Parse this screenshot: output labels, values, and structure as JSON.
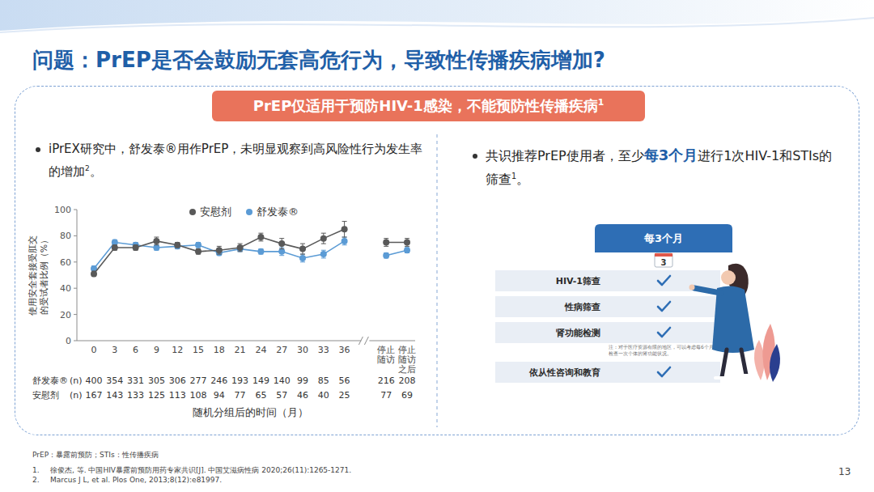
{
  "slide": {
    "title": "问题：PrEP是否会鼓励无套高危行为，导致性传播疾病增加?",
    "banner": {
      "text": "PrEP仅适用于预防HIV-1感染，不能预防性传播疾病",
      "ref": "1"
    },
    "left_bullet": {
      "text": "iPrEX研究中，舒发泰®用作PrEP，未明显观察到高风险性行为发生率的增加",
      "ref": "2",
      "end": "。"
    },
    "right_bullet": {
      "before": "共识推荐PrEP使用者，至少",
      "highlight": "每3个月",
      "after": "进行1次HIV-1和STIs的筛查",
      "ref": "1",
      "end": "。"
    },
    "schedule": {
      "header": "每3个月",
      "calendar_day": "3",
      "rows": [
        "HIV-1筛查",
        "性病筛查",
        "肾功能检测",
        "依从性咨询和教育"
      ],
      "note": "注：对于医疗资源有限的地区，可以考虑每6个月检查一次个体的肾功能状况。"
    },
    "footnote": "PrEP：暴露前预防；STIs：性传播疾病",
    "references": [
      {
        "number": "1.",
        "text": "徐俊杰, 等. 中国HIV暴露前预防用药专家共识[J]. 中国艾滋病性病 2020;26(11):1265-1271."
      },
      {
        "number": "2.",
        "text": "Marcus J L, et al. Plos One, 2013;8(12):e81997."
      }
    ],
    "page_number": "13"
  },
  "chart_data": {
    "type": "line",
    "x_label": "随机分组后的时间（月）",
    "y_label": "使用安全套接受肛交的受试者比例（%）",
    "categories": [
      "0",
      "3",
      "6",
      "9",
      "12",
      "15",
      "18",
      "21",
      "24",
      "27",
      "30",
      "33",
      "36",
      null,
      "停止随访",
      "停止随访之后"
    ],
    "series": [
      {
        "name": "安慰剂",
        "color": "#595959",
        "marker": "circle",
        "values": [
          51,
          71,
          71,
          76,
          73,
          68,
          69,
          71,
          79,
          74,
          70,
          78,
          85,
          null,
          75,
          75
        ],
        "errors": [
          2,
          2,
          2,
          3,
          2,
          2,
          3,
          3,
          3,
          4,
          4,
          4,
          6,
          null,
          3,
          3
        ]
      },
      {
        "name": "舒发泰®",
        "color": "#5b9bd5",
        "marker": "circle",
        "values": [
          55,
          75,
          73,
          71,
          72,
          73,
          67,
          70,
          68,
          68,
          63,
          66,
          76,
          null,
          65,
          69
        ],
        "errors": [
          2,
          2,
          2,
          2,
          2,
          2,
          2,
          2,
          2,
          3,
          3,
          3,
          3,
          null,
          2,
          2
        ]
      }
    ],
    "ylim": [
      0,
      100
    ],
    "yticks": [
      0,
      20,
      40,
      60,
      80,
      100
    ],
    "grid": false,
    "legend": "top",
    "n_table": {
      "unit": "(n)",
      "rows": [
        {
          "name": "舒发泰®",
          "values": [
            400,
            354,
            331,
            305,
            306,
            277,
            246,
            193,
            149,
            140,
            99,
            85,
            56,
            null,
            216,
            208
          ]
        },
        {
          "name": "安慰剂",
          "values": [
            167,
            143,
            133,
            125,
            113,
            108,
            94,
            77,
            65,
            57,
            46,
            40,
            25,
            null,
            77,
            69
          ]
        }
      ]
    }
  }
}
